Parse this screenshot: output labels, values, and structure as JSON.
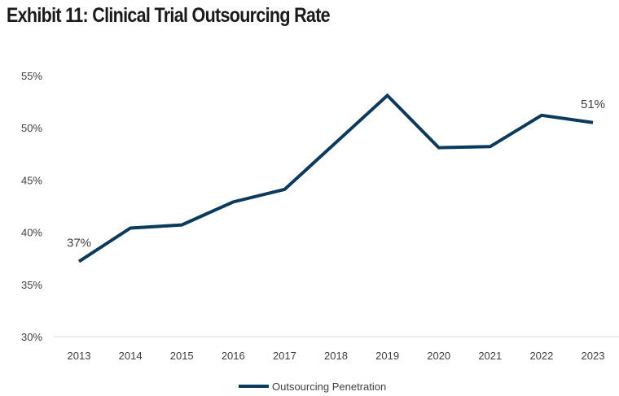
{
  "chart_data": {
    "type": "line",
    "title": "Exhibit 11: Clinical Trial Outsourcing Rate",
    "categories": [
      "2013",
      "2014",
      "2015",
      "2016",
      "2017",
      "2018",
      "2019",
      "2020",
      "2021",
      "2022",
      "2023"
    ],
    "series": [
      {
        "name": "Outsourcing Penetration",
        "color": "#0b3a5f",
        "values": [
          37.2,
          40.4,
          40.7,
          42.9,
          44.1,
          48.6,
          53.1,
          48.1,
          48.2,
          51.2,
          50.5
        ]
      }
    ],
    "ylim": [
      30,
      55
    ],
    "yticks": [
      "30%",
      "35%",
      "40%",
      "45%",
      "50%",
      "55%"
    ],
    "ytick_values": [
      30,
      35,
      40,
      45,
      50,
      55
    ],
    "data_labels": [
      {
        "index": 0,
        "text": "37%"
      },
      {
        "index": 10,
        "text": "51%"
      }
    ],
    "grid": false,
    "legend": "bottom"
  }
}
